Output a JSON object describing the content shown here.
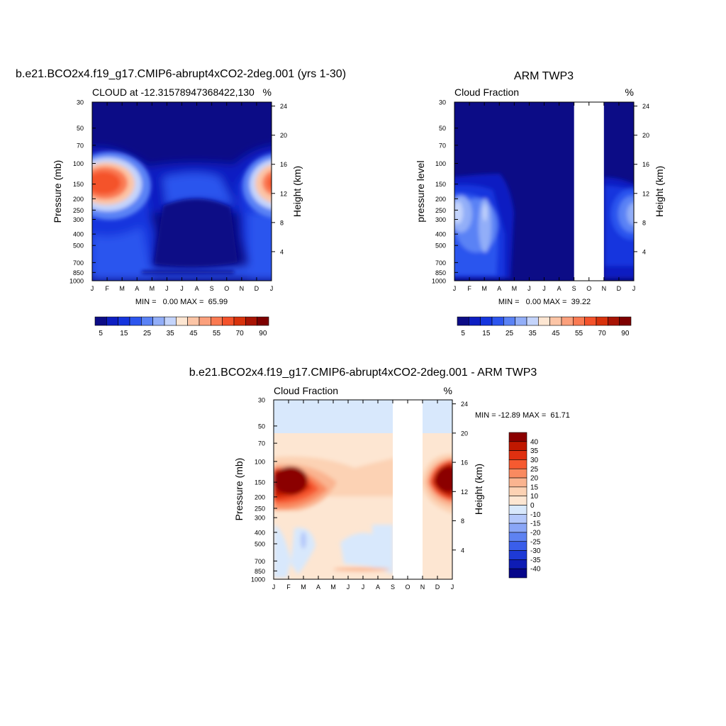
{
  "chart_data": [
    {
      "type": "heatmap",
      "title": "b.e21.BCO2x4.f19_g17.CMIP6-abrupt4xCO2-2deg.001 (yrs 1-30)",
      "left_subtitle": "CLOUD at -12.31578947368422,130",
      "right_subtitle": "%",
      "ylabel": "Pressure (mb)",
      "ylabel_right": "Height (km)",
      "x_ticks": [
        "J",
        "F",
        "M",
        "A",
        "M",
        "J",
        "J",
        "A",
        "S",
        "O",
        "N",
        "D",
        "J"
      ],
      "y_ticks": [
        "30",
        "50",
        "70",
        "100",
        "150",
        "200",
        "250",
        "300",
        "400",
        "500",
        "700",
        "850",
        "1000"
      ],
      "y_ticks_right": [
        "24",
        "20",
        "16",
        "12",
        "8",
        "4"
      ],
      "min_max_text": "MIN =   0.00 MAX =  65.99",
      "legend_ticks": [
        "5",
        "15",
        "25",
        "35",
        "45",
        "55",
        "70",
        "90"
      ],
      "legend_colors": [
        "#0c0c86",
        "#0d1ec2",
        "#1535de",
        "#2c55ee",
        "#5a82f5",
        "#92aef8",
        "#c4d4fb",
        "#fde6d2",
        "#fcc5a6",
        "#fba07c",
        "#fa7a52",
        "#f4522b",
        "#d8320c",
        "#a81404",
        "#7d0000"
      ],
      "color_levels": [
        5,
        10,
        15,
        20,
        25,
        30,
        35,
        40,
        45,
        50,
        55,
        60,
        70,
        80,
        90
      ],
      "ylim_mb": [
        30,
        1000
      ],
      "missing_months": [],
      "grid": false
    },
    {
      "type": "heatmap",
      "title": "ARM TWP3",
      "left_subtitle": "Cloud Fraction",
      "right_subtitle": "%",
      "ylabel": "pressure level",
      "ylabel_right": "Height (km)",
      "x_ticks": [
        "J",
        "F",
        "M",
        "A",
        "M",
        "J",
        "J",
        "A",
        "S",
        "O",
        "N",
        "D",
        "J"
      ],
      "y_ticks": [
        "30",
        "50",
        "70",
        "100",
        "150",
        "200",
        "250",
        "300",
        "400",
        "500",
        "700",
        "850",
        "1000"
      ],
      "y_ticks_right": [
        "24",
        "20",
        "16",
        "12",
        "8",
        "4"
      ],
      "min_max_text": "MIN =   0.00 MAX =  39.22",
      "legend_ticks": [
        "5",
        "15",
        "25",
        "35",
        "45",
        "55",
        "70",
        "90"
      ],
      "legend_colors": [
        "#0c0c86",
        "#0d1ec2",
        "#1535de",
        "#2c55ee",
        "#5a82f5",
        "#92aef8",
        "#c4d4fb",
        "#fde6d2",
        "#fcc5a6",
        "#fba07c",
        "#fa7a52",
        "#f4522b",
        "#d8320c",
        "#a81404",
        "#7d0000"
      ],
      "color_levels": [
        5,
        10,
        15,
        20,
        25,
        30,
        35,
        40,
        45,
        50,
        55,
        60,
        70,
        80,
        90
      ],
      "ylim_mb": [
        30,
        1000
      ],
      "missing_months": [
        "S",
        "O"
      ],
      "grid": false
    },
    {
      "type": "heatmap",
      "title": "b.e21.BCO2x4.f19_g17.CMIP6-abrupt4xCO2-2deg.001 - ARM TWP3",
      "left_subtitle": "Cloud Fraction",
      "right_subtitle": "%",
      "ylabel": "Pressure (mb)",
      "ylabel_right": "Height (km)",
      "x_ticks": [
        "J",
        "F",
        "M",
        "A",
        "M",
        "J",
        "J",
        "A",
        "S",
        "O",
        "N",
        "D",
        "J"
      ],
      "y_ticks": [
        "30",
        "50",
        "70",
        "100",
        "150",
        "200",
        "250",
        "300",
        "400",
        "500",
        "700",
        "850",
        "1000"
      ],
      "y_ticks_right": [
        "24",
        "20",
        "16",
        "12",
        "8",
        "4"
      ],
      "min_max_text": "MIN = -12.89 MAX =  61.71",
      "legend_ticks": [
        "40",
        "35",
        "30",
        "25",
        "20",
        "15",
        "10",
        "0",
        "-10",
        "-15",
        "-20",
        "-25",
        "-30",
        "-35",
        "-40"
      ],
      "legend_colors": [
        "#8b0000",
        "#c01800",
        "#e03010",
        "#f65a30",
        "#f98a60",
        "#fab490",
        "#fcd2b4",
        "#fde6d2",
        "#d8e8fc",
        "#b4c8fb",
        "#8aa6f7",
        "#5e82f2",
        "#3a5eea",
        "#1e3ad6",
        "#0e1cb4",
        "#06068a"
      ],
      "ylim_mb": [
        30,
        1000
      ],
      "missing_months": [
        "S",
        "O"
      ],
      "grid": false
    }
  ]
}
